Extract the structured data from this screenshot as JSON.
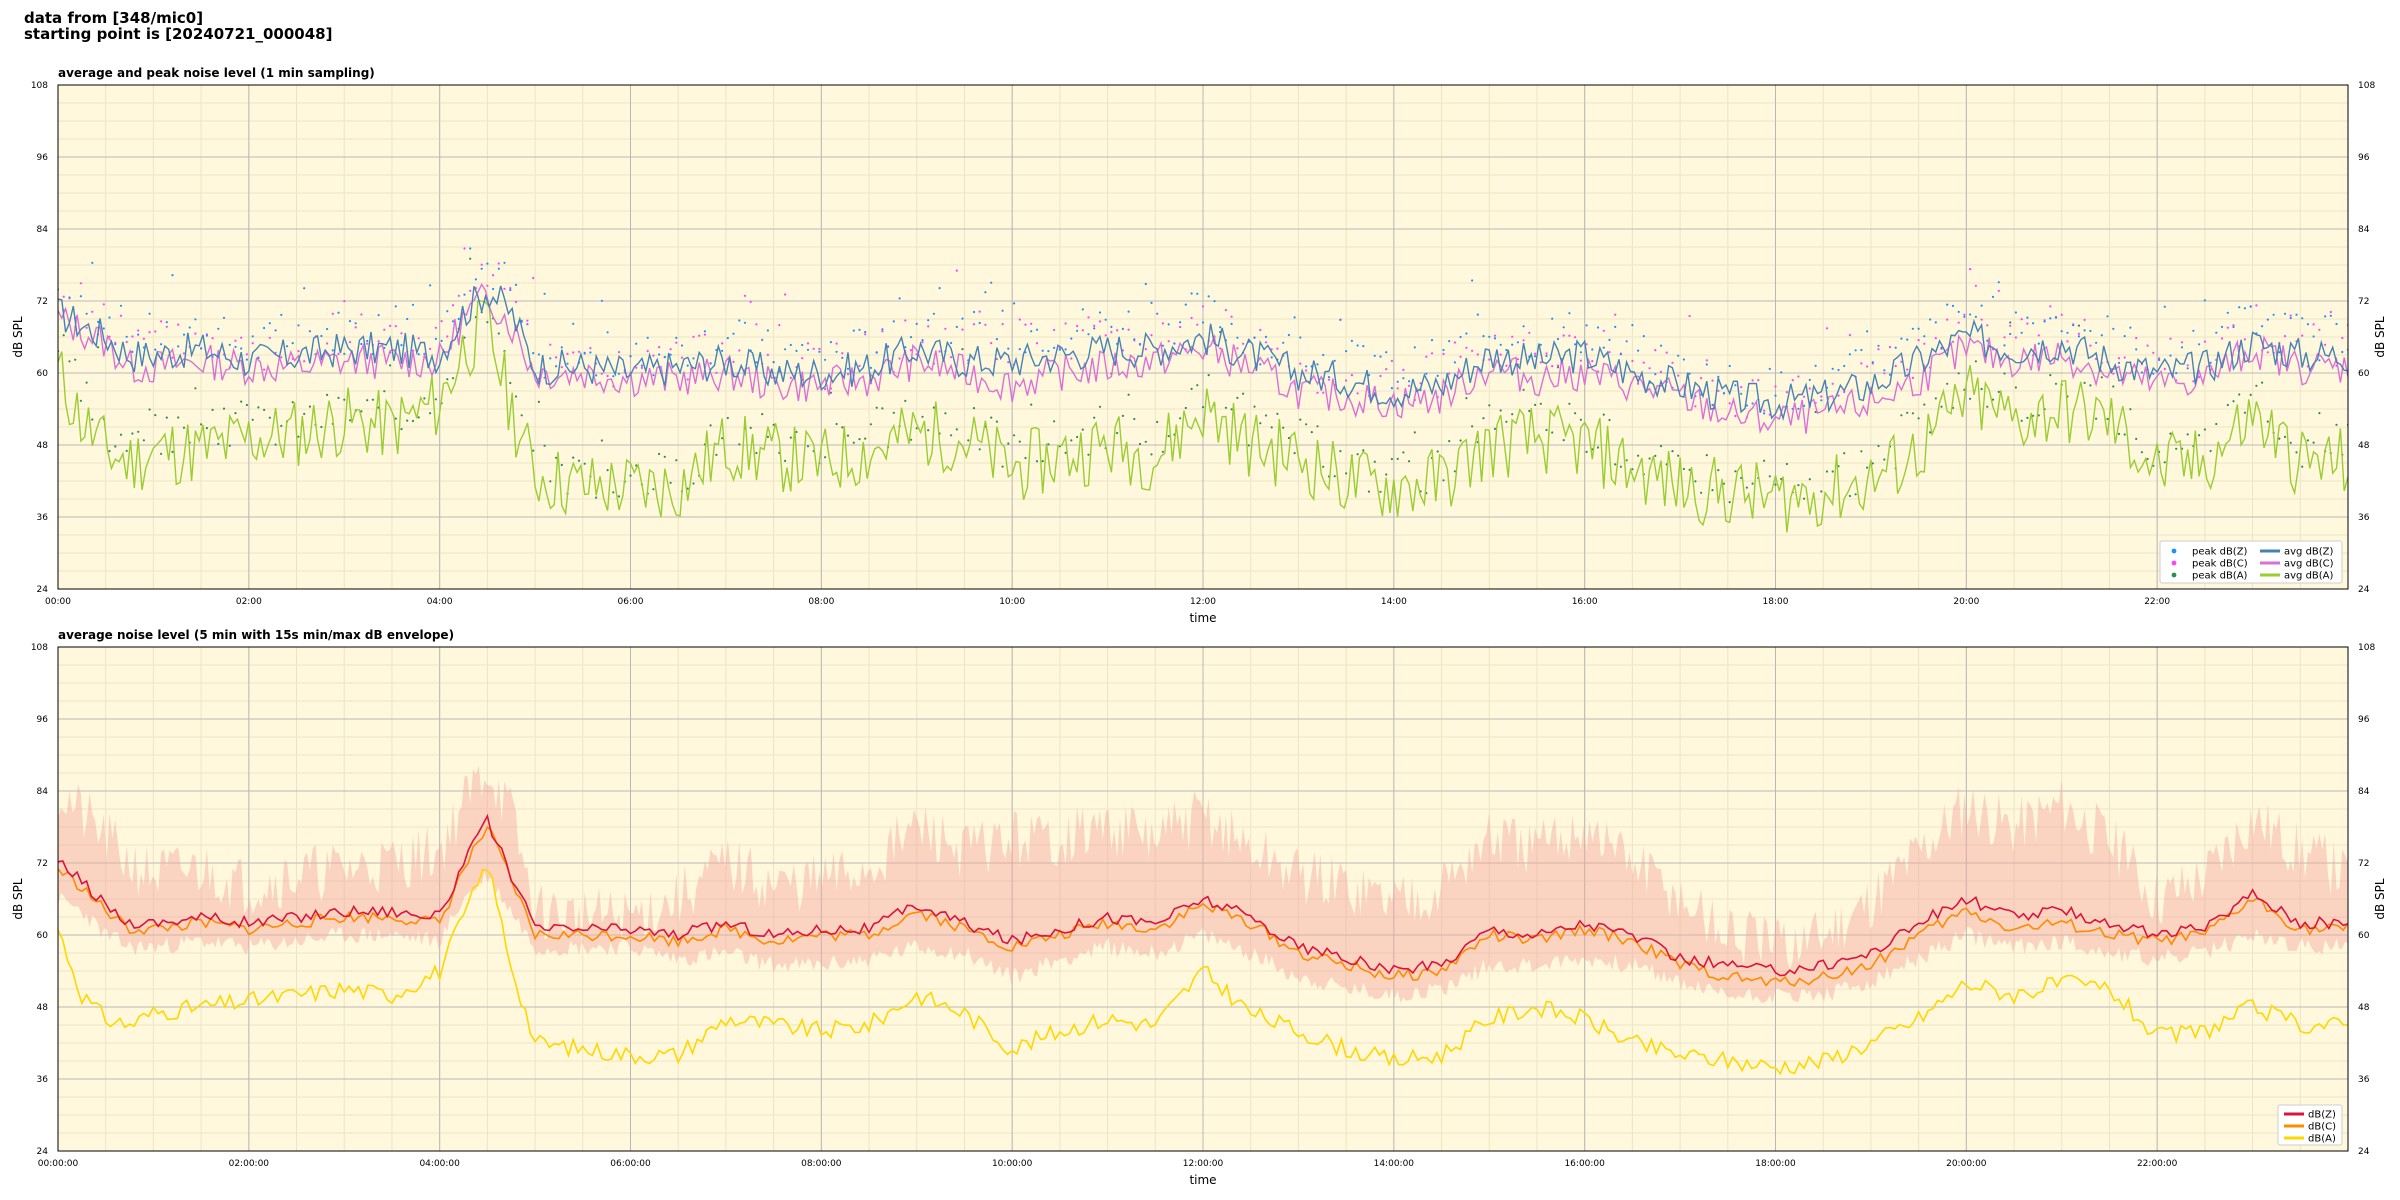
{
  "header": {
    "line1": "data from [348/mic0]",
    "line2": "starting point is [20240721_000048]"
  },
  "colors": {
    "plot_bg": "#fff8dc",
    "grid_major": "#b8b8b8",
    "grid_minor": "#ece4c4",
    "peak_z": "#1f8fff",
    "peak_c": "#ff40ff",
    "peak_a": "#2e8b57",
    "avg_z": "#4682b4",
    "avg_c": "#da70d6",
    "avg_a": "#9acd32",
    "dbz": "#dc143c",
    "dbc": "#ff8c00",
    "dba": "#ffd700",
    "envelope": "#f4a6a0"
  },
  "chart_data": [
    {
      "type": "line",
      "title": "average and peak noise level (1 min sampling)",
      "xlabel": "time",
      "ylabel": "dB SPL",
      "xlim": [
        "00:00",
        "24:00"
      ],
      "ylim": [
        24,
        108
      ],
      "yticks": [
        24,
        36,
        48,
        60,
        72,
        84,
        96,
        108
      ],
      "xticks": [
        "00:00",
        "02:00",
        "04:00",
        "06:00",
        "08:00",
        "10:00",
        "12:00",
        "14:00",
        "16:00",
        "18:00",
        "20:00",
        "22:00"
      ],
      "grid": true,
      "legend_position": "bottom-right",
      "legend": [
        "peak dB(Z)",
        "peak dB(C)",
        "peak dB(A)",
        "avg dB(Z)",
        "avg dB(C)",
        "avg dB(A)"
      ],
      "x_hours": [
        0,
        0.25,
        0.5,
        0.75,
        1,
        1.5,
        2,
        2.5,
        3,
        3.5,
        4,
        4.25,
        4.5,
        4.75,
        5,
        5.5,
        6,
        6.5,
        7,
        7.5,
        8,
        8.5,
        9,
        9.5,
        10,
        10.5,
        11,
        11.5,
        12,
        12.5,
        13,
        13.5,
        14,
        14.5,
        15,
        15.5,
        16,
        16.5,
        17,
        17.5,
        18,
        18.5,
        19,
        19.5,
        20,
        20.5,
        21,
        21.5,
        22,
        22.5,
        23,
        23.5,
        24
      ],
      "series": [
        {
          "name": "avg dB(Z)",
          "values": [
            70,
            68,
            66,
            63,
            63,
            64,
            62,
            63,
            64,
            64,
            63,
            70,
            74,
            70,
            61,
            61,
            60,
            61,
            62,
            60,
            60,
            61,
            64,
            62,
            62,
            63,
            64,
            64,
            66,
            63,
            60,
            59,
            57,
            58,
            63,
            62,
            63,
            60,
            58,
            56,
            55,
            56,
            58,
            62,
            66,
            64,
            65,
            62,
            60,
            61,
            65,
            63,
            63
          ]
        },
        {
          "name": "avg dB(C)",
          "values": [
            69,
            67,
            65,
            61,
            61,
            62,
            61,
            61,
            62,
            62,
            62,
            69,
            73,
            68,
            60,
            60,
            59,
            59,
            60,
            58,
            58,
            59,
            62,
            60,
            58,
            60,
            61,
            62,
            64,
            61,
            57,
            56,
            55,
            56,
            61,
            59,
            60,
            58,
            56,
            53,
            52,
            53,
            55,
            59,
            64,
            62,
            63,
            60,
            58,
            59,
            64,
            61,
            61
          ]
        },
        {
          "name": "avg dB(A)",
          "values": [
            60,
            52,
            47,
            45,
            47,
            47,
            49,
            50,
            52,
            51,
            55,
            64,
            68,
            54,
            43,
            41,
            41,
            41,
            48,
            46,
            45,
            47,
            50,
            49,
            44,
            46,
            48,
            46,
            54,
            48,
            46,
            42,
            41,
            42,
            48,
            49,
            48,
            44,
            41,
            40,
            39,
            40,
            42,
            47,
            56,
            52,
            54,
            52,
            44,
            45,
            53,
            45,
            45
          ]
        },
        {
          "name": "peak dB(Z)",
          "values": [
            74,
            72,
            70,
            66,
            66,
            67,
            64,
            66,
            67,
            67,
            66,
            74,
            78,
            74,
            62,
            62,
            62,
            64,
            66,
            63,
            63,
            64,
            68,
            66,
            67,
            67,
            68,
            68,
            70,
            66,
            63,
            62,
            60,
            62,
            67,
            66,
            67,
            63,
            60,
            58,
            57,
            58,
            61,
            65,
            70,
            68,
            69,
            66,
            62,
            64,
            69,
            66,
            66
          ]
        },
        {
          "name": "peak dB(C)",
          "values": [
            73,
            71,
            69,
            65,
            65,
            66,
            63,
            65,
            66,
            66,
            65,
            73,
            77,
            73,
            61,
            61,
            61,
            62,
            64,
            61,
            61,
            62,
            66,
            64,
            65,
            65,
            66,
            66,
            69,
            65,
            61,
            60,
            58,
            60,
            65,
            64,
            65,
            62,
            59,
            56,
            55,
            56,
            59,
            63,
            68,
            66,
            67,
            64,
            61,
            63,
            68,
            65,
            65
          ]
        },
        {
          "name": "peak dB(A)",
          "values": [
            65,
            56,
            50,
            48,
            49,
            50,
            51,
            52,
            54,
            53,
            58,
            67,
            72,
            57,
            45,
            43,
            43,
            43,
            51,
            49,
            48,
            50,
            53,
            52,
            47,
            49,
            51,
            49,
            57,
            51,
            49,
            45,
            43,
            44,
            51,
            52,
            51,
            47,
            43,
            42,
            41,
            42,
            44,
            50,
            59,
            55,
            57,
            55,
            46,
            47,
            56,
            48,
            48
          ]
        }
      ]
    },
    {
      "type": "line",
      "title": "average noise level (5 min with 15s min/max dB envelope)",
      "xlabel": "time",
      "ylabel": "dB SPL",
      "xlim": [
        "00:00:00",
        "24:00:00"
      ],
      "ylim": [
        24,
        108
      ],
      "yticks": [
        24,
        36,
        48,
        60,
        72,
        84,
        96,
        108
      ],
      "xticks": [
        "00:00:00",
        "02:00:00",
        "04:00:00",
        "06:00:00",
        "08:00:00",
        "10:00:00",
        "12:00:00",
        "14:00:00",
        "16:00:00",
        "18:00:00",
        "20:00:00",
        "22:00:00"
      ],
      "grid": true,
      "legend_position": "bottom-right",
      "legend": [
        "dB(Z)",
        "dB(C)",
        "dB(A)"
      ],
      "x_hours": [
        0,
        0.25,
        0.5,
        0.75,
        1,
        1.5,
        2,
        2.5,
        3,
        3.5,
        4,
        4.25,
        4.5,
        4.75,
        5,
        5.5,
        6,
        6.5,
        7,
        7.5,
        8,
        8.5,
        9,
        9.5,
        10,
        10.5,
        11,
        11.5,
        12,
        12.5,
        13,
        13.5,
        14,
        14.5,
        15,
        15.5,
        16,
        16.5,
        17,
        17.5,
        18,
        18.5,
        19,
        19.5,
        20,
        20.5,
        21,
        21.5,
        22,
        22.5,
        23,
        23.5,
        24
      ],
      "series": [
        {
          "name": "dB(Z)",
          "values": [
            72,
            69,
            65,
            62,
            62,
            63,
            62,
            63,
            64,
            64,
            63,
            72,
            79,
            70,
            61,
            61,
            61,
            60,
            62,
            60,
            61,
            61,
            65,
            62,
            59,
            61,
            63,
            62,
            66,
            63,
            58,
            56,
            54,
            55,
            61,
            60,
            62,
            60,
            56,
            55,
            54,
            55,
            57,
            62,
            66,
            63,
            64,
            62,
            60,
            61,
            67,
            62,
            62
          ]
        },
        {
          "name": "dB(C)",
          "values": [
            71,
            68,
            64,
            61,
            61,
            62,
            61,
            62,
            63,
            63,
            62,
            71,
            78,
            69,
            60,
            60,
            60,
            59,
            61,
            59,
            60,
            60,
            64,
            61,
            58,
            60,
            62,
            61,
            65,
            62,
            57,
            55,
            53,
            54,
            60,
            59,
            61,
            59,
            55,
            53,
            52,
            53,
            55,
            60,
            64,
            61,
            62,
            60,
            59,
            60,
            66,
            61,
            61
          ]
        },
        {
          "name": "dB(A)",
          "values": [
            61,
            50,
            46,
            45,
            47,
            48,
            49,
            50,
            51,
            50,
            54,
            63,
            72,
            55,
            42,
            41,
            40,
            40,
            46,
            45,
            44,
            45,
            50,
            47,
            41,
            44,
            46,
            45,
            54,
            47,
            44,
            41,
            39,
            40,
            46,
            48,
            46,
            42,
            40,
            39,
            38,
            39,
            42,
            46,
            52,
            50,
            52,
            51,
            43,
            44,
            48,
            45,
            45
          ]
        },
        {
          "name": "envelope max",
          "values": [
            84,
            80,
            76,
            72,
            70,
            71,
            68,
            70,
            71,
            72,
            74,
            82,
            88,
            80,
            64,
            63,
            63,
            66,
            72,
            68,
            69,
            71,
            78,
            74,
            76,
            76,
            78,
            76,
            80,
            74,
            70,
            68,
            66,
            68,
            76,
            74,
            78,
            72,
            66,
            60,
            58,
            60,
            66,
            74,
            82,
            78,
            82,
            76,
            66,
            70,
            80,
            74,
            70
          ]
        },
        {
          "name": "envelope min",
          "values": [
            66,
            64,
            60,
            58,
            58,
            59,
            58,
            59,
            60,
            60,
            59,
            66,
            70,
            64,
            58,
            58,
            58,
            56,
            57,
            55,
            55,
            56,
            58,
            57,
            53,
            56,
            58,
            57,
            60,
            57,
            53,
            51,
            50,
            51,
            55,
            55,
            56,
            55,
            52,
            50,
            50,
            50,
            52,
            56,
            60,
            58,
            59,
            57,
            56,
            57,
            60,
            58,
            58
          ]
        }
      ]
    }
  ]
}
